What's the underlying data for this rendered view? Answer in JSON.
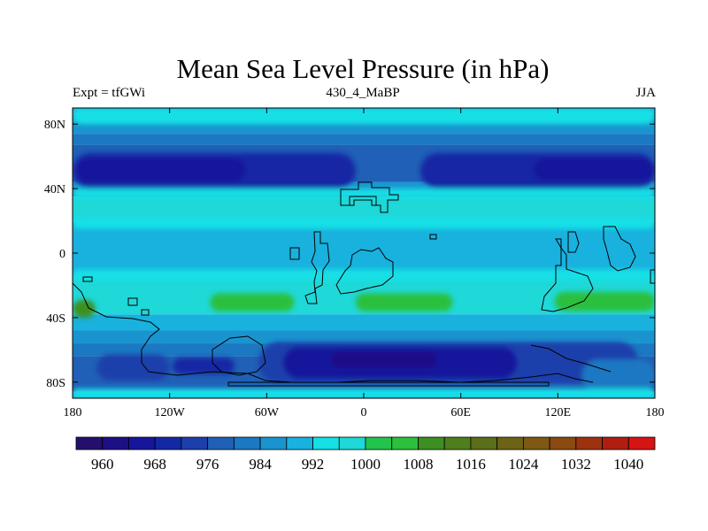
{
  "chart_data": {
    "type": "heatmap",
    "title": "Mean Sea Level Pressure (in hPa)",
    "left_string": "Expt = tfGWi",
    "center_string": "430_4_MaBP",
    "right_string": "JJA",
    "x_range": [
      -180,
      180
    ],
    "y_range": [
      -90,
      90
    ],
    "x_ticks": [
      {
        "value": -180,
        "label": "180"
      },
      {
        "value": -120,
        "label": "120W"
      },
      {
        "value": -60,
        "label": "60W"
      },
      {
        "value": 0,
        "label": "0"
      },
      {
        "value": 60,
        "label": "60E"
      },
      {
        "value": 120,
        "label": "120E"
      },
      {
        "value": 180,
        "label": "180"
      }
    ],
    "y_ticks": [
      {
        "value": 80,
        "label": "80N"
      },
      {
        "value": 40,
        "label": "40N"
      },
      {
        "value": 0,
        "label": "0"
      },
      {
        "value": -40,
        "label": "40S"
      },
      {
        "value": -80,
        "label": "80S"
      }
    ],
    "colorbar": {
      "colors": [
        "#240f6e",
        "#1d0f86",
        "#16169c",
        "#1228a4",
        "#1c3fab",
        "#2060b6",
        "#1b78c2",
        "#1a94cf",
        "#19b1de",
        "#14e0e6",
        "#1fd8d8",
        "#22c44e",
        "#2cc03c",
        "#3e8f23",
        "#4f7e1c",
        "#5b6e19",
        "#6c6314",
        "#7f5813",
        "#8a4a10",
        "#9c3210",
        "#b01e12",
        "#d71414"
      ],
      "labeled_levels": [
        "960",
        "968",
        "976",
        "984",
        "992",
        "1000",
        "1008",
        "1016",
        "1024",
        "1032",
        "1040"
      ]
    },
    "bands": [
      {
        "lat_from": 90,
        "lat_to": 86,
        "level": 988
      },
      {
        "lat_from": 86,
        "lat_to": 74,
        "level": 984
      },
      {
        "lat_from": 74,
        "lat_to": 67,
        "level": 980
      },
      {
        "lat_from": 67,
        "lat_to": 44,
        "level": 976
      },
      {
        "lat_from": 44,
        "lat_to": 35,
        "level": 984
      },
      {
        "lat_from": 35,
        "lat_to": 19,
        "level": 996
      },
      {
        "lat_from": 19,
        "lat_to": -14,
        "level": 988
      },
      {
        "lat_from": -14,
        "lat_to": -38,
        "level": 996
      },
      {
        "lat_from": -38,
        "lat_to": -48,
        "level": 988
      },
      {
        "lat_from": -48,
        "lat_to": -56,
        "level": 984
      },
      {
        "lat_from": -56,
        "lat_to": -64,
        "level": 980
      },
      {
        "lat_from": -64,
        "lat_to": -86,
        "level": 976
      },
      {
        "lat_from": -86,
        "lat_to": -90,
        "level": 988
      }
    ],
    "features": [
      {
        "level": 992,
        "lon": -180,
        "lat": 90,
        "w": 360,
        "h": 10
      },
      {
        "level": 968,
        "lon": -180,
        "lat": 62,
        "w": 175,
        "h": 22
      },
      {
        "level": 964,
        "lon": -178,
        "lat": 59,
        "w": 105,
        "h": 15
      },
      {
        "level": 968,
        "lon": 35,
        "lat": 62,
        "w": 145,
        "h": 22
      },
      {
        "level": 964,
        "lon": 105,
        "lat": 59,
        "w": 75,
        "h": 14
      },
      {
        "level": 992,
        "lon": -180,
        "lat": 40,
        "w": 360,
        "h": 6
      },
      {
        "level": 992,
        "lon": -180,
        "lat": 22,
        "w": 360,
        "h": 7
      },
      {
        "level": 992,
        "lon": -180,
        "lat": -10,
        "w": 360,
        "h": 7
      },
      {
        "level": 1004,
        "lon": -95,
        "lat": -25,
        "w": 52,
        "h": 11
      },
      {
        "level": 1004,
        "lon": -5,
        "lat": -25,
        "w": 60,
        "h": 11
      },
      {
        "level": 1004,
        "lon": 118,
        "lat": -24,
        "w": 62,
        "h": 12
      },
      {
        "level": 1008,
        "lon": -180,
        "lat": -29,
        "w": 14,
        "h": 11
      },
      {
        "level": 972,
        "lon": -165,
        "lat": -63,
        "w": 45,
        "h": 16
      },
      {
        "level": 972,
        "lon": -65,
        "lat": -55,
        "w": 235,
        "h": 26
      },
      {
        "level": 968,
        "lon": -118,
        "lat": -65,
        "w": 38,
        "h": 10
      },
      {
        "level": 964,
        "lon": -50,
        "lat": -58,
        "w": 145,
        "h": 20
      },
      {
        "level": 960,
        "lon": -20,
        "lat": -61,
        "w": 65,
        "h": 10
      },
      {
        "level": 980,
        "lon": 135,
        "lat": -66,
        "w": 45,
        "h": 20
      },
      {
        "level": 992,
        "lon": -180,
        "lat": -84,
        "w": 360,
        "h": 6
      }
    ]
  }
}
